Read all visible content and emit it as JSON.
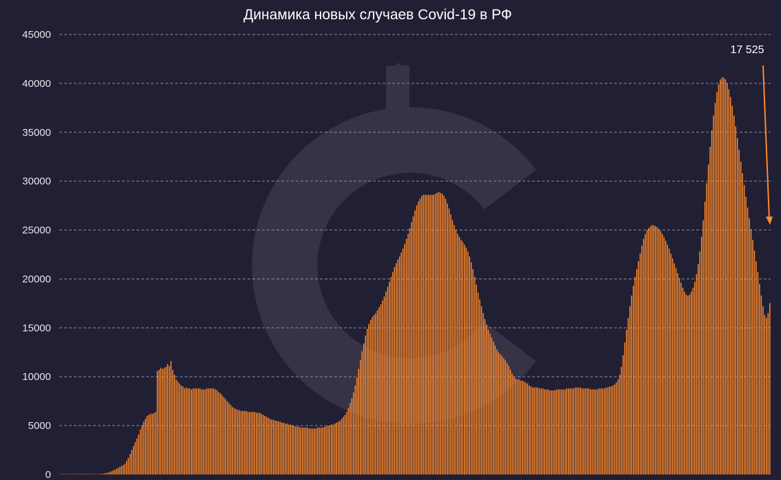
{
  "chart_data": {
    "type": "bar",
    "title": "Динамика новых случаев Covid-19 в РФ",
    "xlabel": "",
    "ylabel": "",
    "ylim": [
      0,
      45000
    ],
    "yticks": [
      0,
      5000,
      10000,
      15000,
      20000,
      25000,
      30000,
      35000,
      40000,
      45000
    ],
    "grid": true,
    "bar_color": "#ff8a2a",
    "background_color": "#211f33",
    "annotation": {
      "text": "17 525",
      "value": 17525,
      "arrow_color": "#ff8a2a"
    },
    "values": [
      0,
      0,
      0,
      0,
      0,
      0,
      0,
      0,
      0,
      0,
      0,
      0,
      0,
      0,
      0,
      0,
      0,
      1,
      3,
      6,
      10,
      17,
      26,
      38,
      55,
      79,
      109,
      147,
      194,
      251,
      318,
      395,
      481,
      574,
      672,
      771,
      868,
      960,
      1100,
      1400,
      1700,
      2100,
      2500,
      2900,
      3300,
      3700,
      4100,
      4600,
      5000,
      5400,
      5700,
      6000,
      6100,
      6200,
      6200,
      6300,
      6400,
      10600,
      10700,
      10900,
      10800,
      10900,
      11000,
      11300,
      11100,
      11600,
      10700,
      10200,
      9700,
      9500,
      9300,
      9100,
      9000,
      8800,
      8900,
      8800,
      8800,
      8700,
      8800,
      8800,
      8800,
      8800,
      8800,
      8700,
      8700,
      8700,
      8800,
      8800,
      8800,
      8800,
      8800,
      8700,
      8600,
      8400,
      8300,
      8100,
      7900,
      7700,
      7500,
      7300,
      7100,
      6900,
      6800,
      6700,
      6600,
      6600,
      6500,
      6500,
      6500,
      6500,
      6400,
      6400,
      6400,
      6400,
      6400,
      6300,
      6300,
      6300,
      6200,
      6100,
      6000,
      5900,
      5800,
      5700,
      5600,
      5600,
      5500,
      5500,
      5400,
      5400,
      5300,
      5300,
      5200,
      5200,
      5100,
      5100,
      5000,
      5000,
      4900,
      4900,
      4900,
      4800,
      4800,
      4800,
      4800,
      4800,
      4700,
      4700,
      4700,
      4700,
      4700,
      4800,
      4800,
      4800,
      4800,
      4900,
      4900,
      5000,
      5000,
      5100,
      5100,
      5200,
      5300,
      5400,
      5500,
      5700,
      5900,
      6100,
      6400,
      6800,
      7300,
      7800,
      8400,
      9100,
      9900,
      10800,
      11700,
      12600,
      13400,
      14200,
      14900,
      15400,
      15800,
      16100,
      16300,
      16500,
      16800,
      17100,
      17400,
      17800,
      18200,
      18700,
      19200,
      19700,
      20200,
      20700,
      21200,
      21600,
      22000,
      22300,
      22700,
      23100,
      23600,
      24100,
      24600,
      25200,
      25800,
      26400,
      27000,
      27500,
      27900,
      28200,
      28500,
      28600,
      28600,
      28600,
      28600,
      28600,
      28600,
      28600,
      28700,
      28800,
      28900,
      28800,
      28700,
      28500,
      28200,
      27700,
      27200,
      26600,
      26000,
      25500,
      25000,
      24600,
      24300,
      24000,
      23800,
      23500,
      23200,
      22800,
      22300,
      21700,
      21000,
      20200,
      19400,
      18600,
      17900,
      17200,
      16500,
      15900,
      15300,
      14800,
      14400,
      14000,
      13600,
      13200,
      12800,
      12500,
      12300,
      12100,
      11900,
      11700,
      11400,
      11100,
      10700,
      10300,
      10000,
      9800,
      9700,
      9700,
      9600,
      9600,
      9500,
      9400,
      9300,
      9100,
      9000,
      8900,
      8900,
      8900,
      8900,
      8800,
      8800,
      8800,
      8700,
      8700,
      8700,
      8600,
      8600,
      8600,
      8600,
      8700,
      8700,
      8700,
      8700,
      8700,
      8700,
      8800,
      8800,
      8800,
      8800,
      8800,
      8900,
      8900,
      8900,
      8900,
      8800,
      8800,
      8800,
      8800,
      8800,
      8700,
      8700,
      8700,
      8700,
      8700,
      8800,
      8800,
      8800,
      8800,
      8900,
      8900,
      9000,
      9000,
      9100,
      9200,
      9400,
      9700,
      10200,
      11000,
      12200,
      13500,
      14800,
      16000,
      17200,
      18300,
      19300,
      20200,
      21000,
      21800,
      22600,
      23400,
      24100,
      24600,
      25000,
      25200,
      25400,
      25500,
      25500,
      25400,
      25300,
      25100,
      24900,
      24600,
      24300,
      23900,
      23500,
      23100,
      22600,
      22100,
      21600,
      21100,
      20600,
      20100,
      19600,
      19100,
      18700,
      18400,
      18300,
      18400,
      18700,
      19100,
      19700,
      20500,
      21500,
      22800,
      24300,
      26000,
      27900,
      29800,
      31700,
      33500,
      35200,
      36700,
      38000,
      39100,
      39900,
      40400,
      40600,
      40600,
      40400,
      40000,
      39400,
      38600,
      37700,
      36700,
      35600,
      34400,
      33200,
      32000,
      30800,
      29600,
      28400,
      27300,
      26200,
      25100,
      24000,
      22900,
      21800,
      20700,
      19500,
      18300,
      17200,
      16300,
      16000,
      16500,
      17525
    ]
  }
}
